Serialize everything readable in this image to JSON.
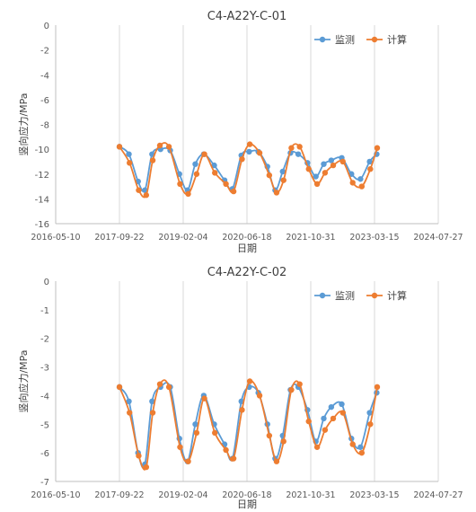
{
  "chart_data": [
    {
      "type": "line",
      "title": "C4-A22Y-C-01",
      "xlabel": "日期",
      "ylabel": "竖向应力/MPa",
      "xlim": [
        "2016-05-10",
        "2024-07-27"
      ],
      "ylim": [
        -16,
        0
      ],
      "x_ticks": [
        "2016-05-10",
        "2017-09-22",
        "2019-02-04",
        "2020-06-18",
        "2021-10-31",
        "2023-03-15",
        "2024-07-27"
      ],
      "y_ticks": [
        0,
        -2,
        -4,
        -6,
        -8,
        -10,
        -12,
        -14,
        -16
      ],
      "grid": "vertical",
      "legend": "top-right",
      "series": [
        {
          "name": "监测",
          "color": "#5B9BD5",
          "points": [
            [
              "2017-09-22",
              -9.8
            ],
            [
              "2017-12-05",
              -10.4
            ],
            [
              "2018-02-15",
              -12.6
            ],
            [
              "2018-04-10",
              -13.3
            ],
            [
              "2018-06-05",
              -10.4
            ],
            [
              "2018-08-10",
              -10.0
            ],
            [
              "2018-10-25",
              -10.1
            ],
            [
              "2019-01-05",
              -12.0
            ],
            [
              "2019-03-10",
              -13.3
            ],
            [
              "2019-05-10",
              -11.2
            ],
            [
              "2019-07-15",
              -10.4
            ],
            [
              "2019-10-05",
              -11.3
            ],
            [
              "2019-12-25",
              -12.5
            ],
            [
              "2020-02-25",
              -13.2
            ],
            [
              "2020-05-05",
              -10.5
            ],
            [
              "2020-07-05",
              -10.2
            ],
            [
              "2020-09-15",
              -10.2
            ],
            [
              "2020-11-25",
              -11.4
            ],
            [
              "2021-01-25",
              -13.3
            ],
            [
              "2021-03-25",
              -11.8
            ],
            [
              "2021-05-25",
              -10.3
            ],
            [
              "2021-07-25",
              -10.4
            ],
            [
              "2021-10-05",
              -11.1
            ],
            [
              "2021-12-10",
              -12.2
            ],
            [
              "2022-02-10",
              -11.2
            ],
            [
              "2022-04-10",
              -10.9
            ],
            [
              "2022-07-01",
              -10.7
            ],
            [
              "2022-09-15",
              -12.0
            ],
            [
              "2022-11-25",
              -12.4
            ],
            [
              "2023-02-05",
              -11.0
            ],
            [
              "2023-04-01",
              -10.4
            ]
          ]
        },
        {
          "name": "计算",
          "color": "#ED7D31",
          "points": [
            [
              "2017-09-22",
              -9.8
            ],
            [
              "2017-12-10",
              -11.1
            ],
            [
              "2018-02-20",
              -13.3
            ],
            [
              "2018-04-20",
              -13.7
            ],
            [
              "2018-06-10",
              -10.9
            ],
            [
              "2018-08-05",
              -9.7
            ],
            [
              "2018-10-15",
              -9.8
            ],
            [
              "2019-01-10",
              -12.8
            ],
            [
              "2019-03-15",
              -13.6
            ],
            [
              "2019-05-20",
              -12.0
            ],
            [
              "2019-07-20",
              -10.4
            ],
            [
              "2019-10-10",
              -11.9
            ],
            [
              "2020-01-05",
              -12.8
            ],
            [
              "2020-03-05",
              -13.4
            ],
            [
              "2020-05-10",
              -10.8
            ],
            [
              "2020-07-10",
              -9.6
            ],
            [
              "2020-09-25",
              -10.3
            ],
            [
              "2020-12-10",
              -12.1
            ],
            [
              "2021-02-05",
              -13.5
            ],
            [
              "2021-04-01",
              -12.5
            ],
            [
              "2021-06-01",
              -9.9
            ],
            [
              "2021-08-05",
              -9.8
            ],
            [
              "2021-10-15",
              -11.6
            ],
            [
              "2021-12-20",
              -12.8
            ],
            [
              "2022-02-20",
              -11.9
            ],
            [
              "2022-04-25",
              -11.3
            ],
            [
              "2022-07-10",
              -11.0
            ],
            [
              "2022-09-25",
              -12.7
            ],
            [
              "2022-12-05",
              -13.0
            ],
            [
              "2023-02-10",
              -11.6
            ],
            [
              "2023-04-05",
              -9.9
            ]
          ]
        }
      ]
    },
    {
      "type": "line",
      "title": "C4-A22Y-C-02",
      "xlabel": "日期",
      "ylabel": "竖向应力/MPa",
      "xlim": [
        "2016-05-10",
        "2024-07-27"
      ],
      "ylim": [
        -7,
        0
      ],
      "x_ticks": [
        "2016-05-10",
        "2017-09-22",
        "2019-02-04",
        "2020-06-18",
        "2021-10-31",
        "2023-03-15",
        "2024-07-27"
      ],
      "y_ticks": [
        0,
        -1,
        -2,
        -3,
        -4,
        -5,
        -6,
        -7
      ],
      "grid": "vertical",
      "legend": "top-right",
      "series": [
        {
          "name": "监测",
          "color": "#5B9BD5",
          "points": [
            [
              "2017-09-22",
              -3.7
            ],
            [
              "2017-12-05",
              -4.2
            ],
            [
              "2018-02-15",
              -6.0
            ],
            [
              "2018-04-10",
              -6.4
            ],
            [
              "2018-06-05",
              -4.2
            ],
            [
              "2018-08-10",
              -3.7
            ],
            [
              "2018-10-25",
              -3.7
            ],
            [
              "2019-01-05",
              -5.5
            ],
            [
              "2019-03-10",
              -6.3
            ],
            [
              "2019-05-10",
              -5.0
            ],
            [
              "2019-07-15",
              -4.0
            ],
            [
              "2019-10-05",
              -5.0
            ],
            [
              "2019-12-25",
              -5.7
            ],
            [
              "2020-02-25",
              -6.2
            ],
            [
              "2020-05-05",
              -4.2
            ],
            [
              "2020-07-05",
              -3.7
            ],
            [
              "2020-09-15",
              -3.9
            ],
            [
              "2020-11-25",
              -5.0
            ],
            [
              "2021-01-25",
              -6.2
            ],
            [
              "2021-03-25",
              -5.4
            ],
            [
              "2021-05-25",
              -3.8
            ],
            [
              "2021-07-25",
              -3.7
            ],
            [
              "2021-10-05",
              -4.5
            ],
            [
              "2021-12-10",
              -5.6
            ],
            [
              "2022-02-10",
              -4.8
            ],
            [
              "2022-04-10",
              -4.4
            ],
            [
              "2022-07-01",
              -4.3
            ],
            [
              "2022-09-15",
              -5.5
            ],
            [
              "2022-11-25",
              -5.8
            ],
            [
              "2023-02-05",
              -4.6
            ],
            [
              "2023-04-01",
              -3.9
            ]
          ]
        },
        {
          "name": "计算",
          "color": "#ED7D31",
          "points": [
            [
              "2017-09-22",
              -3.7
            ],
            [
              "2017-12-10",
              -4.6
            ],
            [
              "2018-02-20",
              -6.1
            ],
            [
              "2018-04-20",
              -6.5
            ],
            [
              "2018-06-10",
              -4.6
            ],
            [
              "2018-08-05",
              -3.6
            ],
            [
              "2018-10-15",
              -3.7
            ],
            [
              "2019-01-10",
              -5.8
            ],
            [
              "2019-03-15",
              -6.3
            ],
            [
              "2019-05-20",
              -5.3
            ],
            [
              "2019-07-20",
              -4.1
            ],
            [
              "2019-10-10",
              -5.3
            ],
            [
              "2020-01-05",
              -5.9
            ],
            [
              "2020-03-05",
              -6.2
            ],
            [
              "2020-05-10",
              -4.5
            ],
            [
              "2020-07-10",
              -3.5
            ],
            [
              "2020-09-25",
              -4.0
            ],
            [
              "2020-12-10",
              -5.4
            ],
            [
              "2021-02-05",
              -6.3
            ],
            [
              "2021-04-01",
              -5.6
            ],
            [
              "2021-06-01",
              -3.8
            ],
            [
              "2021-08-05",
              -3.6
            ],
            [
              "2021-10-15",
              -4.9
            ],
            [
              "2021-12-20",
              -5.8
            ],
            [
              "2022-02-20",
              -5.2
            ],
            [
              "2022-04-25",
              -4.8
            ],
            [
              "2022-07-10",
              -4.6
            ],
            [
              "2022-09-25",
              -5.7
            ],
            [
              "2022-12-05",
              -6.0
            ],
            [
              "2023-02-10",
              -5.0
            ],
            [
              "2023-04-05",
              -3.7
            ]
          ]
        }
      ]
    }
  ]
}
